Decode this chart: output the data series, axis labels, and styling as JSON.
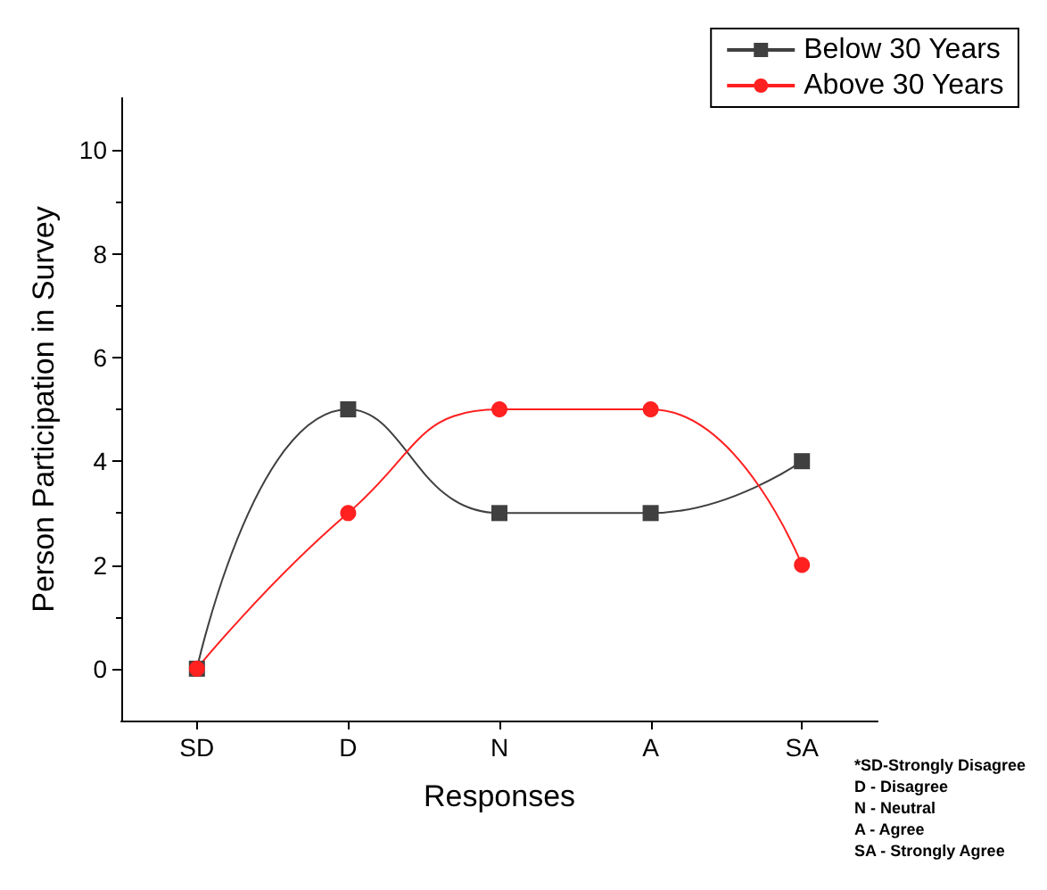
{
  "chart_data": {
    "type": "line",
    "xlabel": "Responses",
    "ylabel": "Person Participation in Survey",
    "categories": [
      "SD",
      "D",
      "N",
      "A",
      "SA"
    ],
    "series": [
      {
        "name": "Below 30 Years",
        "color": "#404040",
        "marker": "square",
        "values": [
          0,
          5,
          3,
          3,
          4
        ]
      },
      {
        "name": "Above 30 Years",
        "color": "#ff2020",
        "marker": "circle",
        "values": [
          0,
          3,
          5,
          5,
          2
        ]
      }
    ],
    "ylim": [
      -1,
      11
    ],
    "yticks": [
      0,
      2,
      4,
      6,
      8,
      10
    ],
    "grid": false,
    "legend": "top right",
    "annotations": [
      "*SD-Strongly Disagree",
      "D - Disagree",
      "N - Neutral",
      "A - Agree",
      "SA - Strongly Agree"
    ]
  }
}
